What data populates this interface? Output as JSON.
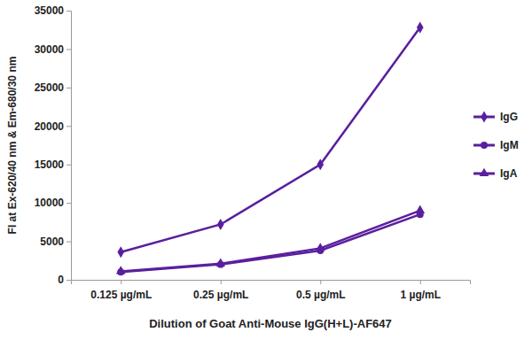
{
  "chart_data": {
    "type": "line",
    "x_label": "Dilution of Goat Anti-Mouse IgG(H+L)-AF647",
    "y_label": "FI at Ex-620/40 nm & Em-680/30 nm",
    "categories": [
      "0.125 µg/mL",
      "0.25 µg/mL",
      "0.5 µg/mL",
      "1 µg/mL"
    ],
    "series": [
      {
        "name": "IgG",
        "color": "#5a1f9e",
        "marker": "diamond",
        "values": [
          3600,
          7200,
          15000,
          32800
        ]
      },
      {
        "name": "IgM",
        "color": "#5a1f9e",
        "marker": "circle",
        "values": [
          1000,
          2000,
          3800,
          8500
        ]
      },
      {
        "name": "IgA",
        "color": "#5a1f9e",
        "marker": "triangle",
        "values": [
          1100,
          2100,
          4100,
          9000
        ]
      }
    ],
    "ylim": [
      0,
      35000
    ],
    "yticks": [
      0,
      5000,
      10000,
      15000,
      20000,
      25000,
      30000,
      35000
    ],
    "grid": false,
    "legend": "right"
  }
}
